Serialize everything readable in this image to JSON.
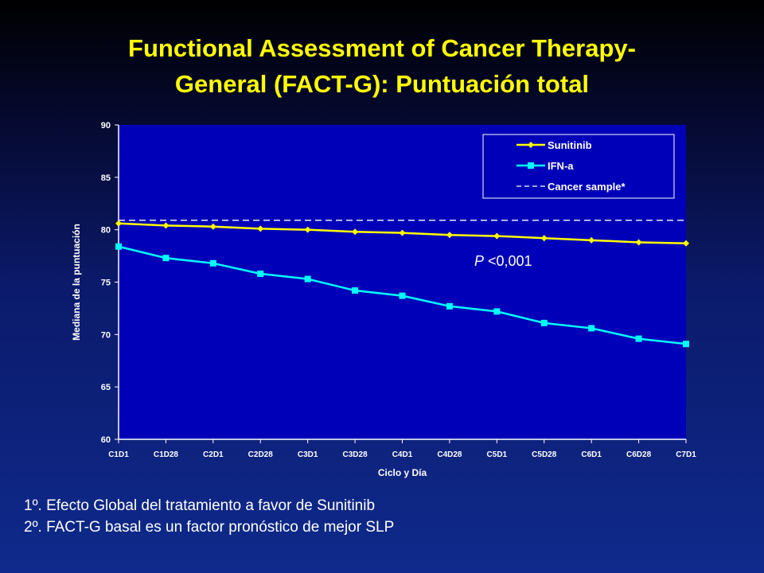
{
  "slide": {
    "title_line1": "Functional Assessment of Cancer Therapy-",
    "title_line2": "General (FACT-G): Puntuación total",
    "notes": [
      "1º. Efecto Global del tratamiento a favor de Sunitinib",
      "2º. FACT-G basal es  un factor pronóstico de mejor SLP"
    ]
  },
  "chart_data": {
    "type": "line",
    "title": "",
    "xlabel": "Ciclo y Día",
    "ylabel": "Mediana de la puntuación",
    "ylim": [
      60,
      90
    ],
    "yticks": [
      60,
      65,
      70,
      75,
      80,
      85,
      90
    ],
    "categories": [
      "C1D1",
      "C1D28",
      "C2D1",
      "C2D28",
      "C3D1",
      "C3D28",
      "C4D1",
      "C4D28",
      "C5D1",
      "C5D28",
      "C6D1",
      "C6D28",
      "C7D1"
    ],
    "series": [
      {
        "name": "Sunitinib",
        "color": "#ffff00",
        "marker": "diamond",
        "values": [
          80.6,
          80.4,
          80.3,
          80.1,
          80.0,
          79.8,
          79.7,
          79.5,
          79.4,
          79.2,
          79.0,
          78.8,
          78.7
        ]
      },
      {
        "name": "IFN-a",
        "color": "#00ffff",
        "marker": "square",
        "values": [
          78.4,
          77.3,
          76.8,
          75.8,
          75.3,
          74.2,
          73.7,
          72.7,
          72.2,
          71.1,
          70.6,
          69.6,
          69.1
        ]
      },
      {
        "name": "Cancer sample*",
        "color": "#ffffff",
        "style": "dashed",
        "reference_value": 80.9
      }
    ],
    "annotation": {
      "italic": "P",
      "rest": " <0,001"
    },
    "legend_position": "top-right",
    "plot_background": "#0000b8",
    "grid": false
  }
}
